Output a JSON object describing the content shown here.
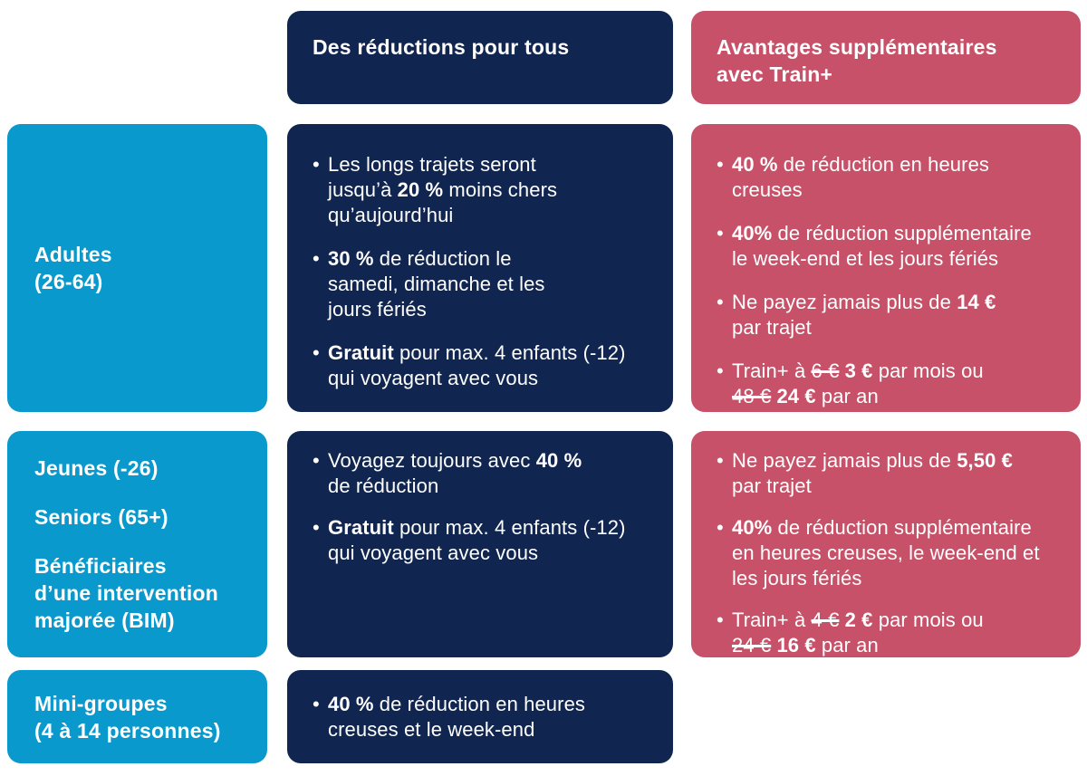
{
  "colors": {
    "navy": "#10254f",
    "blue": "#0999cd",
    "pink": "#c75168",
    "text": "#ffffff",
    "background": "#ffffff"
  },
  "icons": {
    "bullet": "•"
  },
  "table": {
    "headers": {
      "middle": "Des réductions pour tous",
      "right": "Avantages supplémentaires\navec Train+"
    },
    "rows": [
      {
        "labels": [
          "Adultes\n(26-64)"
        ],
        "middle": [
          [
            {
              "t": "Les longs trajets seront\njusqu’à "
            },
            {
              "t": "20 %",
              "b": true
            },
            {
              "t": " moins chers\nqu’aujourd’hui"
            }
          ],
          [
            {
              "t": "30 %",
              "b": true
            },
            {
              "t": " de réduction le\nsamedi, dimanche et les\njours fériés"
            }
          ],
          [
            {
              "t": "Gratuit",
              "b": true
            },
            {
              "t": " pour max. 4 enfants (-12)\nqui voyagent avec vous"
            }
          ]
        ],
        "right": [
          [
            {
              "t": "40 %",
              "b": true
            },
            {
              "t": " de réduction en heures\ncreuses"
            }
          ],
          [
            {
              "t": "40%",
              "b": true
            },
            {
              "t": " de réduction supplémentaire\nle week-end et les jours fériés"
            }
          ],
          [
            {
              "t": "Ne payez jamais plus de "
            },
            {
              "t": "14 €",
              "b": true
            },
            {
              "t": "\npar trajet"
            }
          ],
          [
            {
              "t": "Train+ à "
            },
            {
              "t": "6 €",
              "s": true
            },
            {
              "t": " "
            },
            {
              "t": "3 €",
              "b": true
            },
            {
              "t": " par mois ou\n"
            },
            {
              "t": "48 €",
              "s": true
            },
            {
              "t": " "
            },
            {
              "t": "24 €",
              "b": true
            },
            {
              "t": " par an"
            }
          ]
        ]
      },
      {
        "labels": [
          "Jeunes (-26)",
          "Seniors (65+)",
          "Bénéficiaires\nd’une intervention\nmajorée (BIM)"
        ],
        "middle": [
          [
            {
              "t": "Voyagez toujours avec "
            },
            {
              "t": "40 %",
              "b": true
            },
            {
              "t": "\nde réduction"
            }
          ],
          [
            {
              "t": "Gratuit",
              "b": true
            },
            {
              "t": " pour max. 4 enfants (-12)\nqui voyagent avec vous"
            }
          ]
        ],
        "right": [
          [
            {
              "t": "Ne payez jamais plus de "
            },
            {
              "t": "5,50 €",
              "b": true
            },
            {
              "t": "\npar trajet"
            }
          ],
          [
            {
              "t": "40%",
              "b": true
            },
            {
              "t": " de réduction supplémentaire\nen heures creuses, le week-end et\nles jours fériés"
            }
          ],
          [
            {
              "t": "Train+ à "
            },
            {
              "t": "4 €",
              "s": true
            },
            {
              "t": " "
            },
            {
              "t": "2 €",
              "b": true
            },
            {
              "t": " par mois ou\n"
            },
            {
              "t": "24 €",
              "s": true
            },
            {
              "t": " "
            },
            {
              "t": "16 €",
              "b": true
            },
            {
              "t": " par an"
            }
          ]
        ]
      },
      {
        "labels": [
          "Mini-groupes\n(4 à 14 personnes)"
        ],
        "middle": [
          [
            {
              "t": "40 %",
              "b": true
            },
            {
              "t": " de réduction en heures\ncreuses et le week-end"
            }
          ]
        ],
        "right": null
      }
    ]
  }
}
